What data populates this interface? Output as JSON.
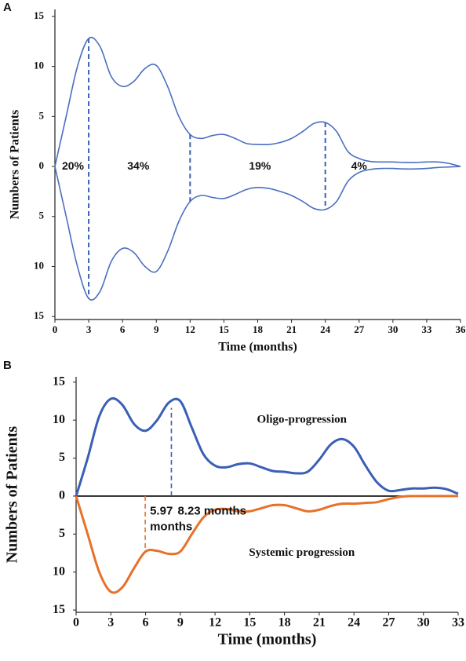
{
  "chart_data": [
    {
      "type": "violin",
      "panel": "A",
      "xlabel": "Time (months)",
      "ylabel": "Numbers of Patients",
      "x": [
        0,
        1,
        2,
        3,
        4,
        5,
        6,
        7,
        8,
        9,
        10,
        11,
        12,
        13,
        14,
        15,
        16,
        17,
        18,
        19,
        20,
        21,
        22,
        23,
        24,
        25,
        26,
        27,
        28,
        29,
        30,
        31,
        32,
        33,
        34,
        35,
        36
      ],
      "series": [
        {
          "color": "#4a6fc0",
          "values": [
            0,
            5,
            10,
            12.8,
            12,
            9,
            8,
            8.5,
            9.8,
            10.1,
            8,
            5,
            3.2,
            2.8,
            3.1,
            3.2,
            2.8,
            2.3,
            2.2,
            2.2,
            2.4,
            2.8,
            3.5,
            4.3,
            4.4,
            3.5,
            1.5,
            0.8,
            0.5,
            0.45,
            0.45,
            0.4,
            0.4,
            0.45,
            0.45,
            0.3,
            0
          ]
        },
        {
          "color": "#4a6fc0",
          "values": [
            0,
            -5,
            -10,
            -13.2,
            -12.5,
            -9.5,
            -8.2,
            -8.6,
            -10,
            -10.5,
            -8.5,
            -5.5,
            -3.5,
            -2.9,
            -3.1,
            -3.2,
            -2.8,
            -2.3,
            -2.1,
            -2.2,
            -2.5,
            -2.9,
            -3.5,
            -4.2,
            -4.3,
            -3.5,
            -1.5,
            -0.6,
            -0.3,
            -0.2,
            -0.2,
            -0.25,
            -0.25,
            -0.2,
            -0.1,
            -0.05,
            0
          ]
        }
      ],
      "dividers": [
        {
          "x": 3,
          "y": [
            12.8,
            -13.2
          ]
        },
        {
          "x": 12,
          "y": [
            3.2,
            -3.5
          ]
        },
        {
          "x": 24,
          "y": [
            4.4,
            -4.3
          ]
        }
      ],
      "region_values": [
        20,
        34,
        19,
        4
      ],
      "region_labels": [
        "20%",
        "34%",
        "19%",
        "4%"
      ],
      "xlim": [
        0,
        36
      ],
      "xticks": [
        0,
        3,
        6,
        9,
        12,
        15,
        18,
        21,
        24,
        27,
        30,
        33,
        36
      ],
      "ylim": [
        -15.3,
        15.7
      ],
      "yticks": [
        15,
        10,
        5,
        0,
        {
          "value": -5,
          "label": "5"
        },
        {
          "value": -10,
          "label": "10"
        },
        {
          "value": -15,
          "label": "15"
        }
      ]
    },
    {
      "type": "line",
      "panel": "B",
      "xlabel": "Time (months)",
      "ylabel": "Numbers of Patients",
      "x": [
        0,
        1,
        2,
        3,
        4,
        5,
        6,
        7,
        8,
        9,
        10,
        11,
        12,
        13,
        14,
        15,
        16,
        17,
        18,
        19,
        20,
        21,
        22,
        23,
        24,
        25,
        26,
        27,
        28,
        29,
        30,
        31,
        32,
        33
      ],
      "series": [
        {
          "name": "Oligo-progression",
          "color": "#3a5fb5",
          "values": [
            0,
            5,
            10.5,
            12.8,
            12,
            9.5,
            8.6,
            10,
            12.3,
            12.5,
            9,
            5.5,
            4,
            3.8,
            4.2,
            4.3,
            3.8,
            3.3,
            3.2,
            3,
            3.2,
            4.8,
            6.8,
            7.5,
            6.5,
            4,
            1.8,
            0.7,
            0.8,
            1,
            1,
            1.1,
            0.9,
            0.3
          ]
        },
        {
          "name": "Systemic progression",
          "color": "#e8712a",
          "values": [
            0,
            -5,
            -10,
            -12.6,
            -12,
            -9.5,
            -7.3,
            -7.2,
            -7.6,
            -7.3,
            -5,
            -2.8,
            -1.8,
            -1.7,
            -2,
            -2,
            -1.6,
            -1.2,
            -1.2,
            -1.6,
            -2,
            -1.8,
            -1.3,
            -1,
            -1,
            -0.9,
            -0.8,
            -0.4,
            -0.1,
            0,
            0,
            0,
            0,
            0
          ]
        }
      ],
      "medians": [
        {
          "x": 8.23,
          "y": 11.6,
          "label": "8.23 months",
          "color": "#3a5fb5"
        },
        {
          "x": 5.97,
          "y": -7.5,
          "label": "5.97 months",
          "color": "#e8712a"
        }
      ],
      "xlim": [
        0,
        33
      ],
      "xticks": [
        0,
        3,
        6,
        9,
        12,
        15,
        18,
        21,
        24,
        27,
        30,
        33
      ],
      "ylim": [
        -15.3,
        15.7
      ],
      "yticks": [
        15,
        10,
        5,
        0,
        {
          "value": -5,
          "label": "5"
        },
        {
          "value": -10,
          "label": "10"
        },
        {
          "value": -15,
          "label": "15"
        }
      ]
    }
  ]
}
